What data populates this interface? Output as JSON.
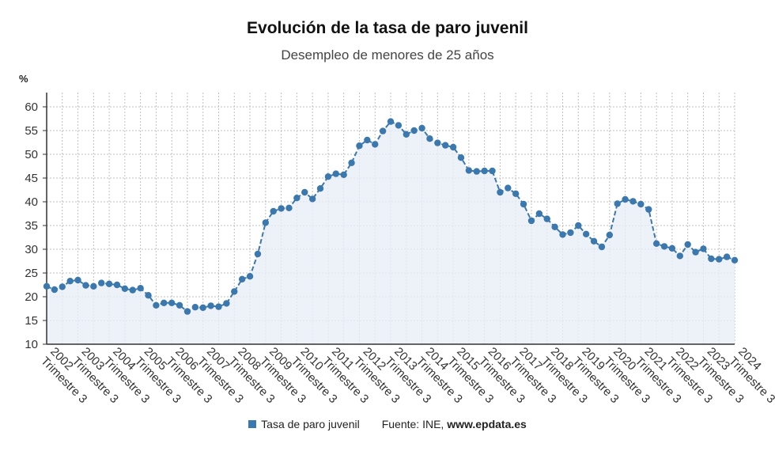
{
  "title": "Evolución de la tasa de paro juvenil",
  "subtitle": "Desempleo de menores de 25 años",
  "colors": {
    "line": "#3b78ad",
    "area": "#e9eef6",
    "grid": "#bfbfbf"
  },
  "legend": {
    "series_label": "Tasa de paro juvenil",
    "source_prefix": "Fuente: INE, ",
    "source_site": "www.epdata.es"
  },
  "chart_data": {
    "type": "line",
    "title": "Evolución de la tasa de paro juvenil",
    "subtitle": "Desempleo de menores de 25 años",
    "ylabel": "%",
    "ylim": [
      10,
      60
    ],
    "yticks": [
      10,
      15,
      20,
      25,
      30,
      35,
      40,
      45,
      50,
      55,
      60
    ],
    "grid": true,
    "legend_position": "bottom",
    "x_tick_labels": [
      "2002 Trimestre 3",
      "2003 Trimestre 3",
      "2004 Trimestre 3",
      "2005 Trimestre 3",
      "2006 Trimestre 3",
      "2007 Trimestre 3",
      "2008 Trimestre 3",
      "2009 Trimestre 3",
      "2010 Trimestre 3",
      "2011 Trimestre 3",
      "2012 Trimestre 3",
      "2013 Trimestre 3",
      "2014 Trimestre 3",
      "2015 Trimestre 3",
      "2016 Trimestre 3",
      "2017 Trimestre 3",
      "2018 Trimestre 3",
      "2019 Trimestre 3",
      "2020 Trimestre 3",
      "2021 Trimestre 3",
      "2022 Trimestre 3",
      "2023 Trimestre 3",
      "2024 Trimestre 3"
    ],
    "series": [
      {
        "name": "Tasa de paro juvenil",
        "values": [
          22.2,
          21.5,
          22.1,
          23.3,
          23.5,
          22.4,
          22.2,
          22.9,
          22.7,
          22.5,
          21.7,
          21.4,
          21.8,
          20.3,
          18.2,
          18.7,
          18.7,
          18.2,
          16.9,
          17.8,
          17.7,
          18.1,
          17.9,
          18.6,
          21.1,
          23.7,
          24.3,
          29.0,
          35.6,
          38.0,
          38.6,
          38.7,
          40.8,
          42.0,
          40.6,
          42.8,
          45.3,
          45.9,
          45.7,
          48.2,
          51.8,
          53.0,
          52.1,
          54.9,
          56.9,
          56.1,
          54.2,
          55.0,
          55.5,
          53.3,
          52.4,
          51.9,
          51.5,
          49.3,
          46.6,
          46.4,
          46.5,
          46.5,
          42.0,
          42.9,
          41.7,
          39.5,
          36.0,
          37.5,
          36.4,
          34.7,
          33.1,
          33.5,
          35.0,
          33.2,
          31.7,
          30.5,
          33.0,
          39.6,
          40.5,
          40.1,
          39.5,
          38.4,
          31.2,
          30.6,
          30.2,
          28.6,
          31.0,
          29.4,
          30.1,
          28.0,
          27.9,
          28.4,
          27.7
        ]
      }
    ]
  }
}
